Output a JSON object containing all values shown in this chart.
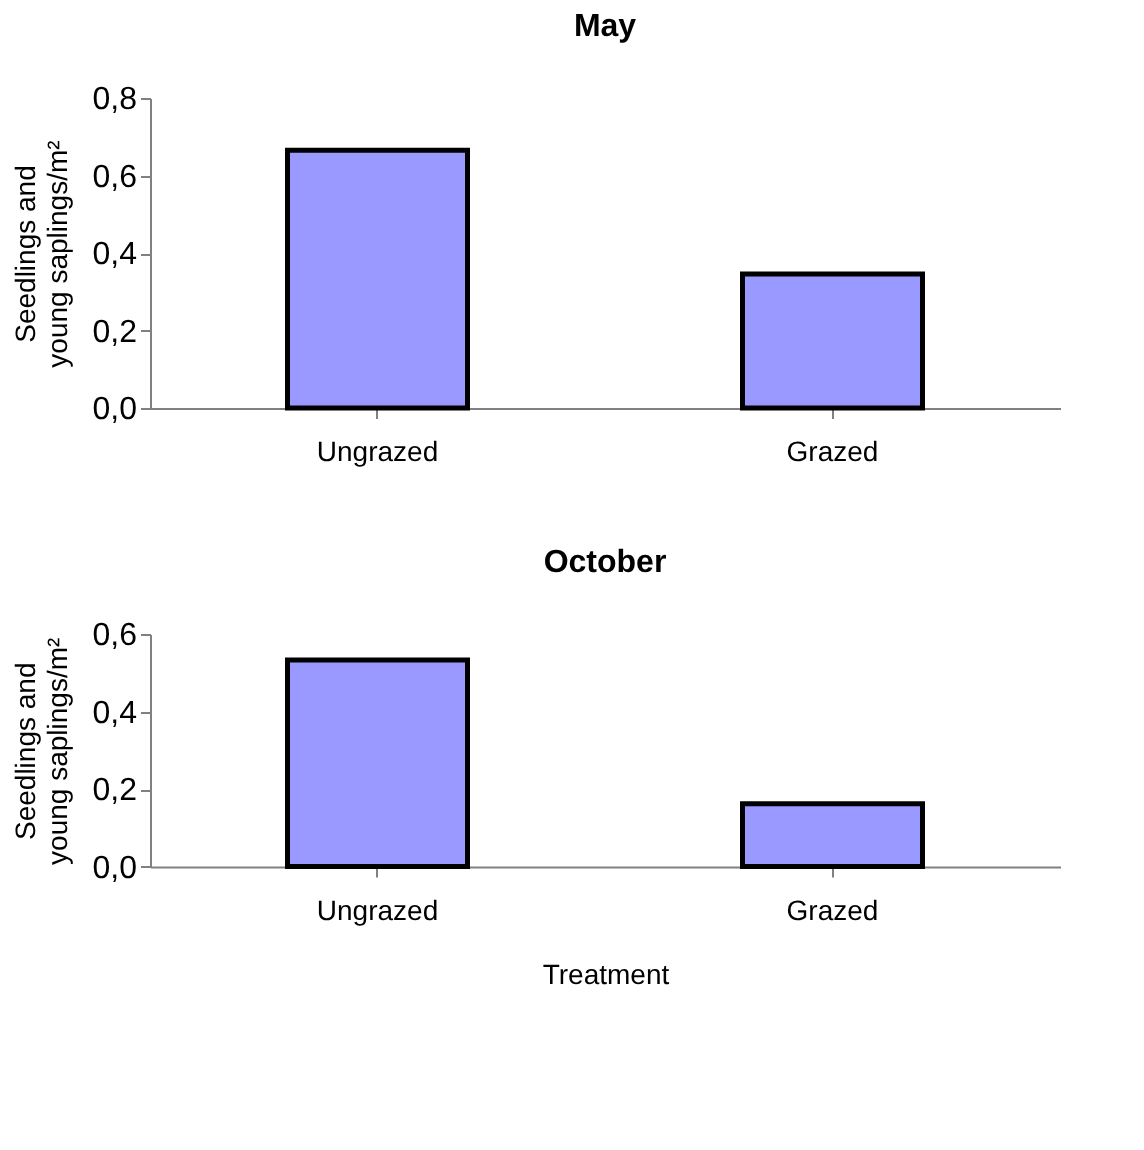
{
  "chart_data": [
    {
      "type": "bar",
      "title": "May",
      "ylabel": "Seedlings and young saplings/m²",
      "categories": [
        "Ungrazed",
        "Grazed"
      ],
      "values": [
        0.665,
        0.346
      ],
      "color": "#9999ff",
      "ylim": [
        0,
        0.8
      ],
      "yticks": [
        {
          "value": 0,
          "label": "0,0"
        },
        {
          "value": 0.2,
          "label": "0,2"
        },
        {
          "value": 0.4,
          "label": "0,4"
        },
        {
          "value": 0.6,
          "label": "0,6"
        },
        {
          "value": 0.8,
          "label": "0,8"
        }
      ],
      "grid": false,
      "legend": false
    },
    {
      "type": "bar",
      "title": "October",
      "xlabel": "Treatment",
      "ylabel": "Seedlings and young saplings/m²",
      "categories": [
        "Ungrazed",
        "Grazed"
      ],
      "values": [
        0.533,
        0.162
      ],
      "color": "#9999ff",
      "ylim": [
        0,
        0.6
      ],
      "yticks": [
        {
          "value": 0,
          "label": "0,0"
        },
        {
          "value": 0.2,
          "label": "0,2"
        },
        {
          "value": 0.4,
          "label": "0,4"
        },
        {
          "value": 0.6,
          "label": "0,6"
        }
      ],
      "grid": false,
      "legend": false
    }
  ]
}
